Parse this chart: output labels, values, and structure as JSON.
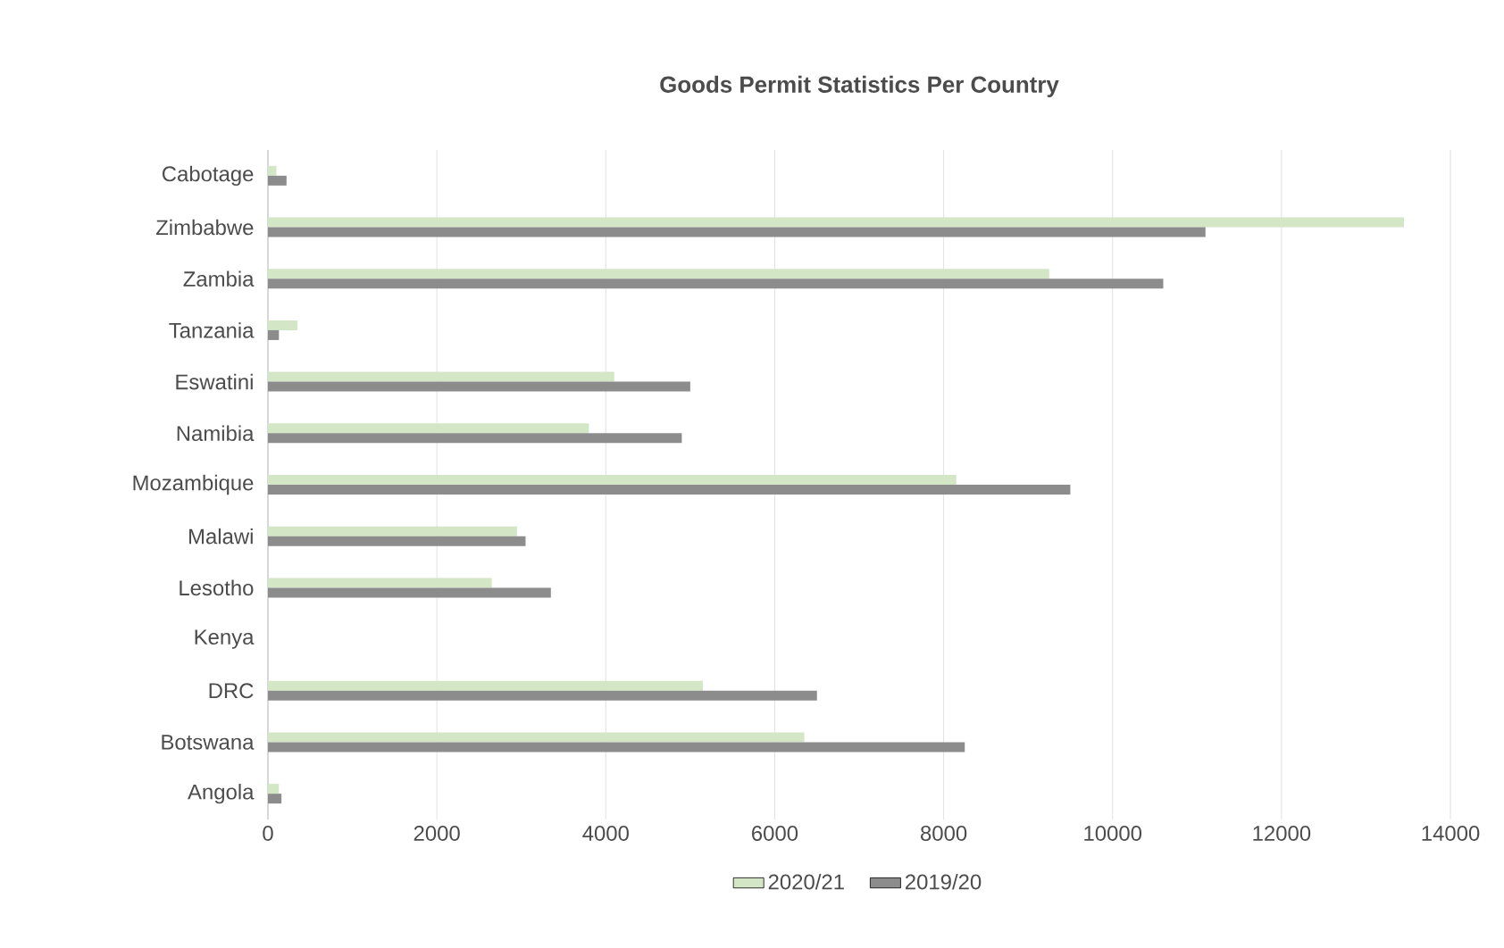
{
  "chart_data": {
    "type": "bar",
    "orientation": "horizontal",
    "title": "Goods Permit Statistics  Per Country",
    "categories": [
      "Cabotage",
      "Zimbabwe",
      "Zambia",
      "Tanzania",
      "Eswatini",
      "Namibia",
      "Mozambique",
      "Malawi",
      "Lesotho",
      "Kenya",
      "DRC",
      "Botswana",
      "Angola"
    ],
    "series": [
      {
        "name": "2020/21",
        "color": "#d3e6c5",
        "values": [
          100,
          13450,
          9250,
          350,
          4100,
          3800,
          8150,
          2950,
          2650,
          0,
          5150,
          6350,
          130
        ]
      },
      {
        "name": "2019/20",
        "color": "#8c8c8c",
        "values": [
          220,
          11100,
          10600,
          130,
          5000,
          4900,
          9500,
          3050,
          3350,
          0,
          6500,
          8250,
          160
        ]
      }
    ],
    "xlim": [
      0,
      14000
    ],
    "xticks": [
      0,
      2000,
      4000,
      6000,
      8000,
      10000,
      12000,
      14000
    ],
    "grid": "x",
    "legend": "bottom"
  }
}
